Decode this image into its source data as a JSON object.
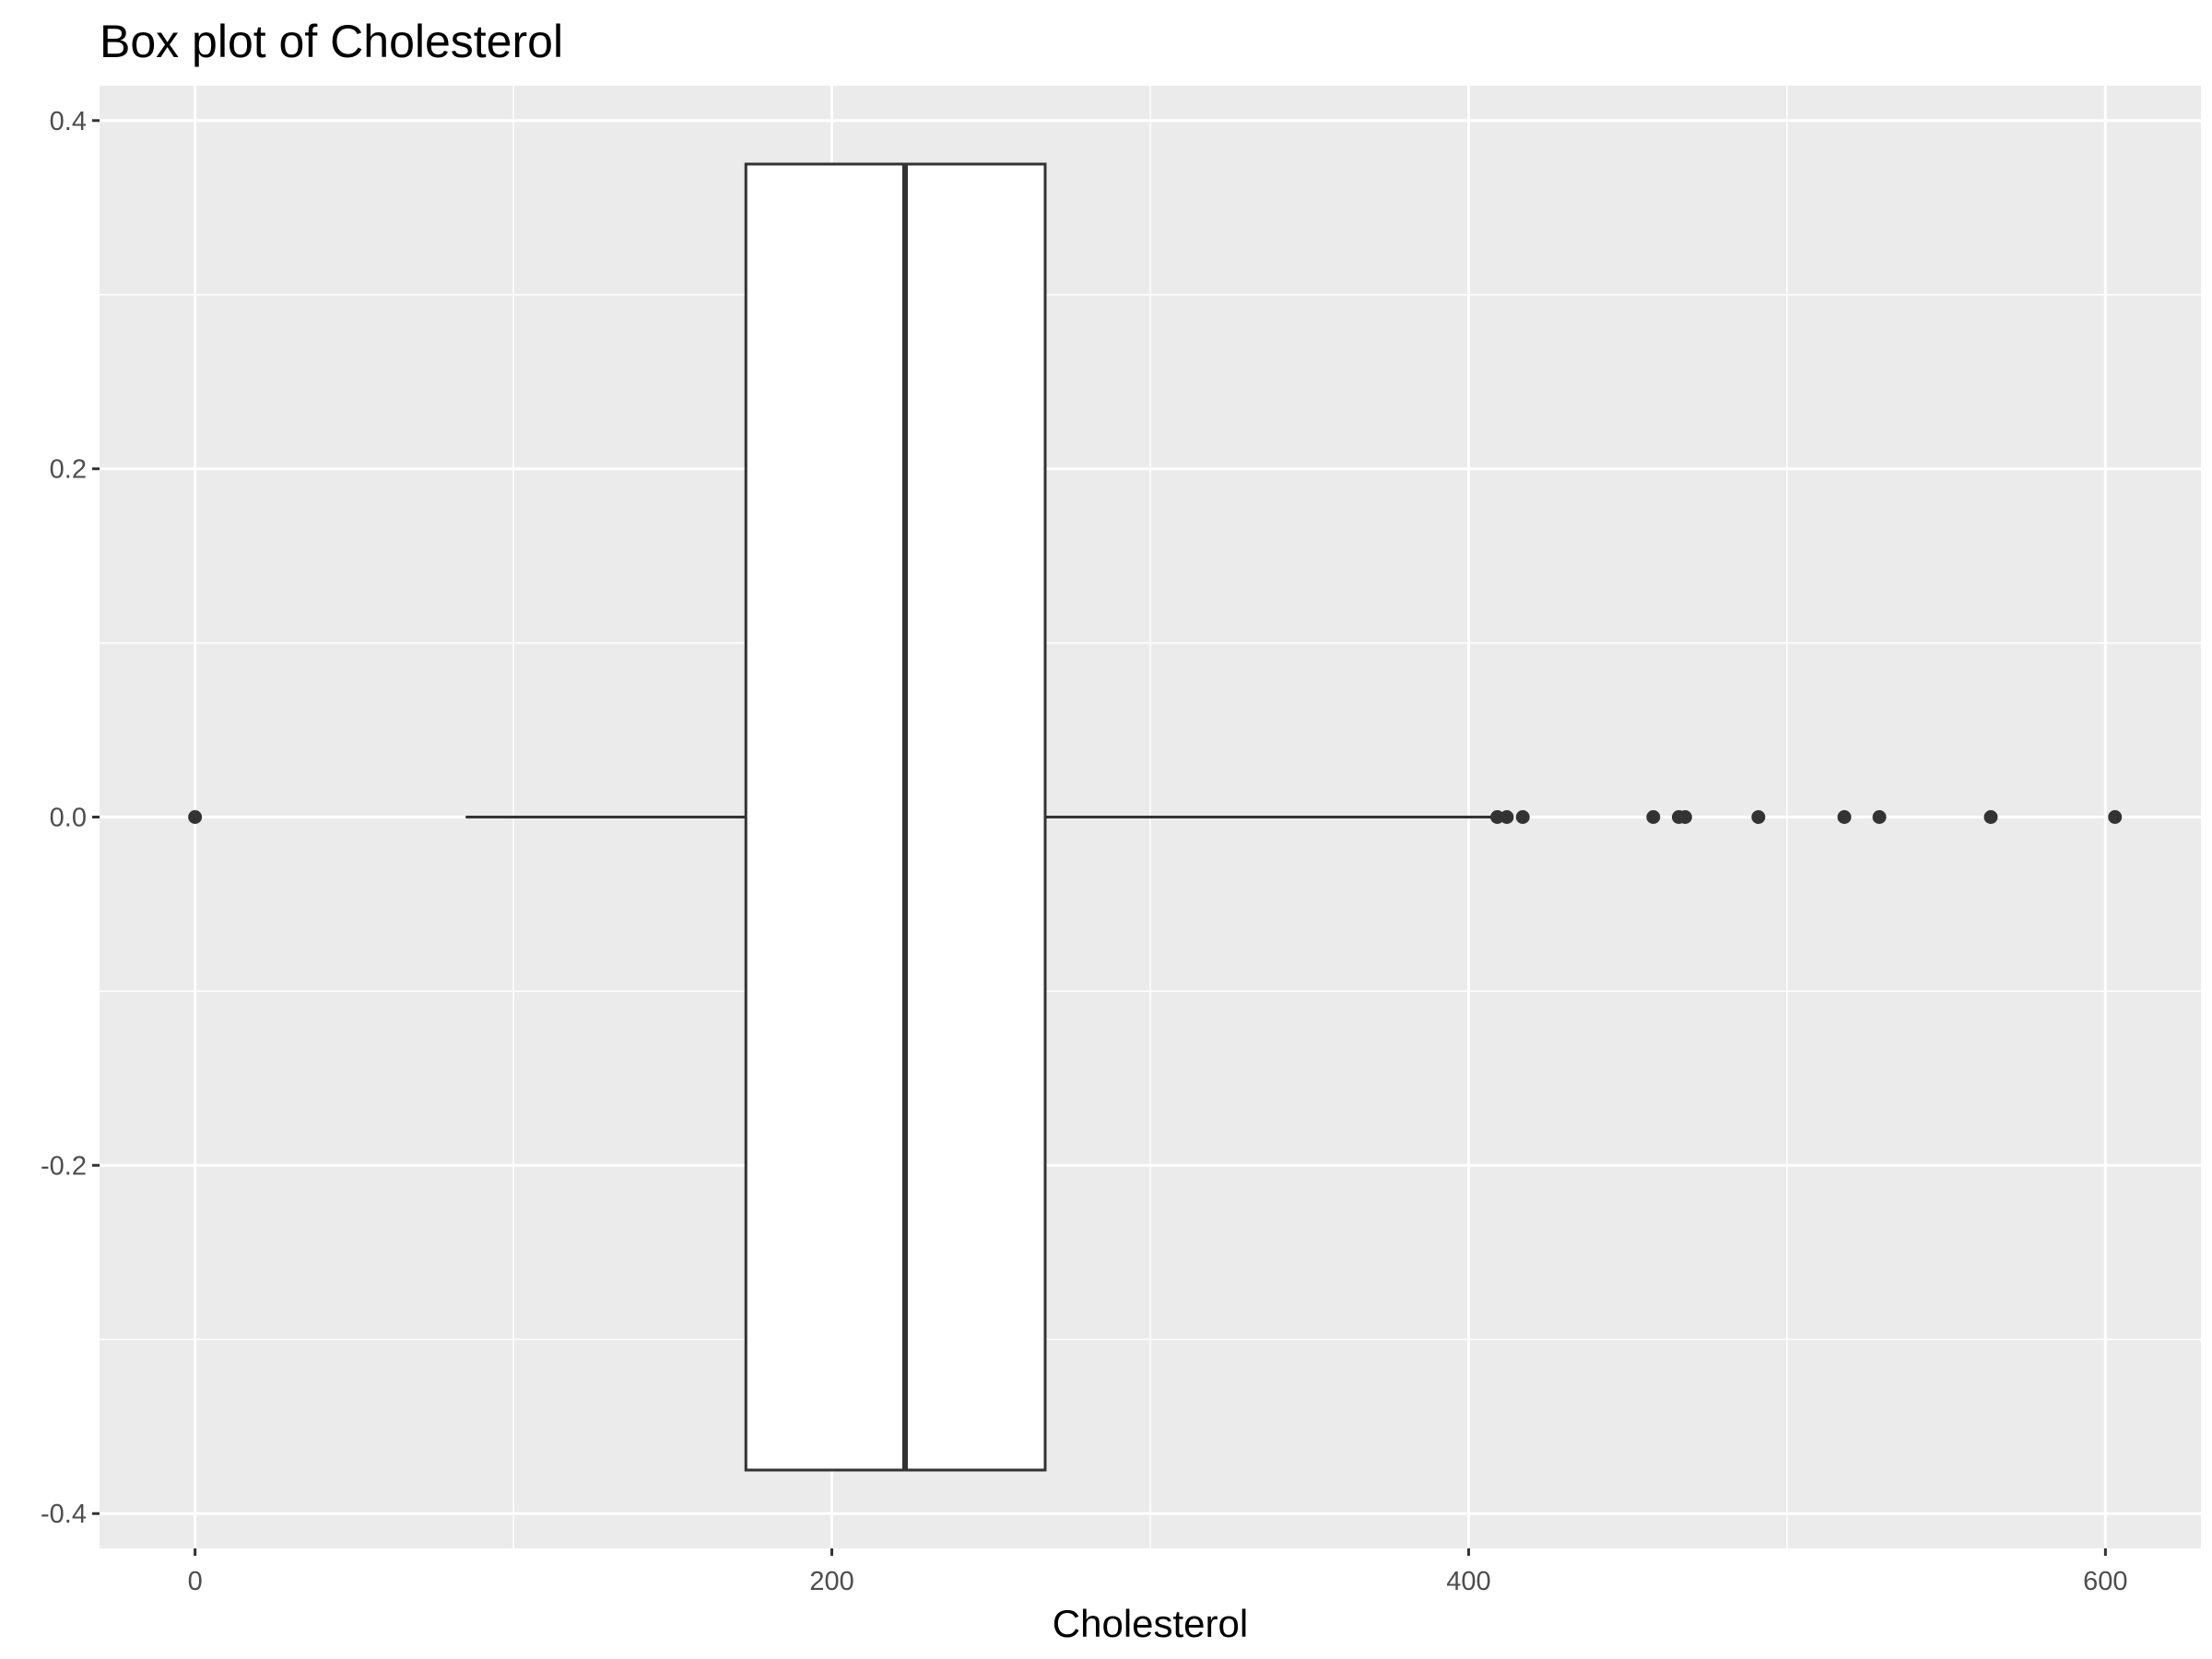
{
  "chart_data": {
    "type": "boxplot",
    "title": "Box plot of Cholesterol",
    "xlabel": "Cholesterol",
    "ylabel": "",
    "orientation": "horizontal",
    "xlim": [
      -30,
      630
    ],
    "ylim": [
      -0.42,
      0.42
    ],
    "x_ticks": [
      0,
      200,
      400,
      600
    ],
    "y_ticks": [
      -0.4,
      -0.2,
      0.0,
      0.2,
      0.4
    ],
    "y_tick_labels": [
      "-0.4",
      "-0.2",
      "0.0",
      "0.2",
      "0.4"
    ],
    "box": {
      "whisker_low": 85,
      "q1": 173,
      "median": 223,
      "q3": 267,
      "whisker_high": 409,
      "y_center": 0.0,
      "half_height": 0.375
    },
    "outliers": [
      0,
      409,
      412,
      417,
      458,
      466,
      468,
      491,
      518,
      529,
      564,
      603
    ],
    "grid": true,
    "background": "#ebebeb",
    "grid_color": "#ffffff",
    "box_fill": "#ffffff",
    "line_color": "#333333"
  }
}
